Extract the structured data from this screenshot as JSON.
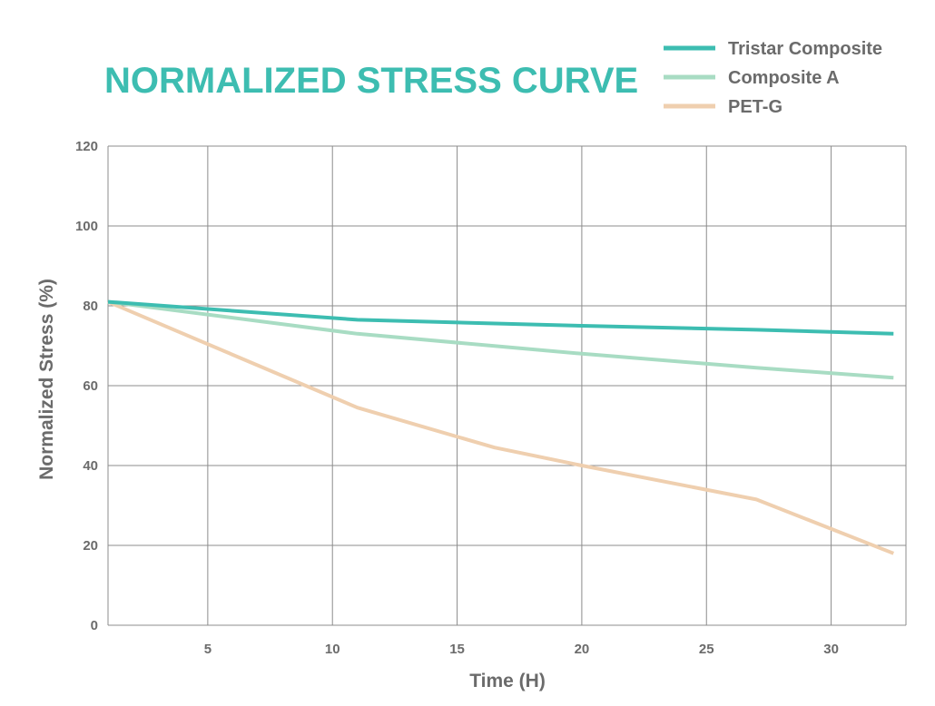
{
  "chart_data": {
    "type": "line",
    "title": "NORMALIZED STRESS CURVE",
    "xlabel": "Time (H)",
    "ylabel": "Normalized Stress (%)",
    "xlim": [
      1,
      33
    ],
    "ylim": [
      0,
      120
    ],
    "xticks": [
      5,
      10,
      15,
      20,
      25,
      30
    ],
    "yticks": [
      0,
      20,
      40,
      60,
      80,
      100,
      120
    ],
    "grid": true,
    "legend_position": "top-right",
    "series": [
      {
        "name": "Tristar Composite",
        "color": "#3dbdb1",
        "x": [
          1,
          11,
          20,
          27,
          32.5
        ],
        "y": [
          81,
          76.5,
          75,
          74,
          73
        ]
      },
      {
        "name": "Composite A",
        "color": "#a8dcc3",
        "x": [
          1,
          11,
          20,
          27,
          32.5
        ],
        "y": [
          81,
          73,
          68,
          64.5,
          62
        ]
      },
      {
        "name": "PET-G",
        "color": "#efcfaf",
        "x": [
          1,
          11,
          16.5,
          20,
          27,
          32.5
        ],
        "y": [
          81,
          54.5,
          44.5,
          40,
          31.5,
          18
        ]
      }
    ]
  },
  "colors": {
    "title": "#3dbdb1",
    "text": "#6b6b6b",
    "grid": "#8c8c8c"
  }
}
